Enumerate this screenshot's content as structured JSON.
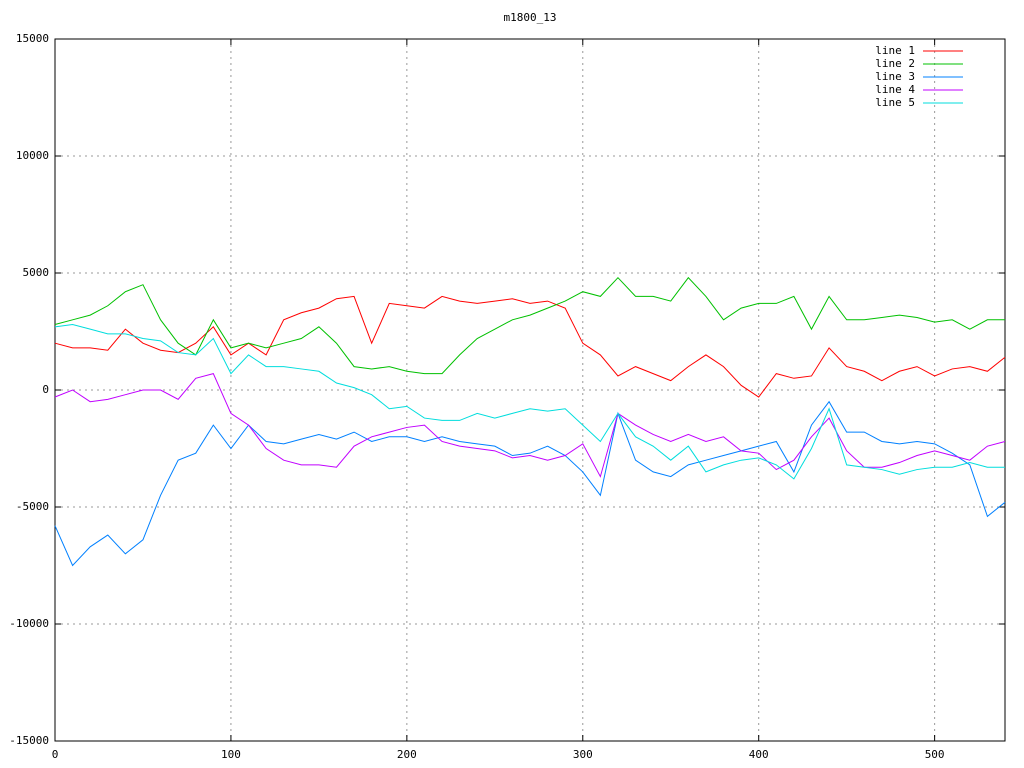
{
  "chart_data": {
    "type": "line",
    "title": "m1800_13",
    "x": [
      0,
      10,
      20,
      30,
      40,
      50,
      60,
      70,
      80,
      90,
      100,
      110,
      120,
      130,
      140,
      150,
      160,
      170,
      180,
      190,
      200,
      210,
      220,
      230,
      240,
      250,
      260,
      270,
      280,
      290,
      300,
      310,
      320,
      330,
      340,
      350,
      360,
      370,
      380,
      390,
      400,
      410,
      420,
      430,
      440,
      450,
      460,
      470,
      480,
      490,
      500,
      510,
      520,
      530,
      540
    ],
    "series": [
      {
        "name": "line 1",
        "color": "#ff0000",
        "values": [
          2000,
          1800,
          1800,
          1700,
          2600,
          2000,
          1700,
          1600,
          2000,
          2700,
          1500,
          2000,
          1500,
          3000,
          3300,
          3500,
          3900,
          4000,
          2000,
          3700,
          3600,
          3500,
          4000,
          3800,
          3700,
          3800,
          3900,
          3700,
          3800,
          3500,
          2000,
          1500,
          600,
          1000,
          700,
          400,
          1000,
          1500,
          1000,
          200,
          -300,
          700,
          500,
          600,
          1800,
          1000,
          800,
          400,
          800,
          1000,
          600,
          900,
          1000,
          800,
          1400
        ]
      },
      {
        "name": "line 2",
        "color": "#00c000",
        "values": [
          2800,
          3000,
          3200,
          3600,
          4200,
          4500,
          3000,
          2000,
          1500,
          3000,
          1800,
          2000,
          1800,
          2000,
          2200,
          2700,
          2000,
          1000,
          900,
          1000,
          800,
          700,
          700,
          1500,
          2200,
          2600,
          3000,
          3200,
          3500,
          3800,
          4200,
          4000,
          4800,
          4000,
          4000,
          3800,
          4800,
          4000,
          3000,
          3500,
          3700,
          3700,
          4000,
          2600,
          4000,
          3000,
          3000,
          3100,
          3200,
          3100,
          2900,
          3000,
          2600,
          3000,
          3000
        ]
      },
      {
        "name": "line 3",
        "color": "#0080ff",
        "values": [
          -5800,
          -7500,
          -6700,
          -6200,
          -7000,
          -6400,
          -4500,
          -3000,
          -2700,
          -1500,
          -2500,
          -1500,
          -2200,
          -2300,
          -2100,
          -1900,
          -2100,
          -1800,
          -2200,
          -2000,
          -2000,
          -2200,
          -2000,
          -2200,
          -2300,
          -2400,
          -2800,
          -2700,
          -2400,
          -2800,
          -3500,
          -4500,
          -1000,
          -3000,
          -3500,
          -3700,
          -3200,
          -3000,
          -2800,
          -2600,
          -2400,
          -2200,
          -3500,
          -1500,
          -500,
          -1800,
          -1800,
          -2200,
          -2300,
          -2200,
          -2300,
          -2700,
          -3200,
          -5400,
          -4800
        ]
      },
      {
        "name": "line 4",
        "color": "#c000ff",
        "values": [
          -300,
          0,
          -500,
          -400,
          -200,
          0,
          0,
          -400,
          500,
          700,
          -1000,
          -1500,
          -2500,
          -3000,
          -3200,
          -3200,
          -3300,
          -2400,
          -2000,
          -1800,
          -1600,
          -1500,
          -2200,
          -2400,
          -2500,
          -2600,
          -2900,
          -2800,
          -3000,
          -2800,
          -2300,
          -3700,
          -1000,
          -1500,
          -1900,
          -2200,
          -1900,
          -2200,
          -2000,
          -2600,
          -2700,
          -3400,
          -3000,
          -2000,
          -1200,
          -2600,
          -3300,
          -3300,
          -3100,
          -2800,
          -2600,
          -2800,
          -3000,
          -2400,
          -2200
        ]
      },
      {
        "name": "line 5",
        "color": "#00dddd",
        "values": [
          2700,
          2800,
          2600,
          2400,
          2400,
          2200,
          2100,
          1600,
          1500,
          2200,
          700,
          1500,
          1000,
          1000,
          900,
          800,
          300,
          100,
          -200,
          -800,
          -700,
          -1200,
          -1300,
          -1300,
          -1000,
          -1200,
          -1000,
          -800,
          -900,
          -800,
          -1500,
          -2200,
          -1000,
          -2000,
          -2400,
          -3000,
          -2400,
          -3500,
          -3200,
          -3000,
          -2900,
          -3200,
          -3800,
          -2500,
          -800,
          -3200,
          -3300,
          -3400,
          -3600,
          -3400,
          -3300,
          -3300,
          -3100,
          -3300,
          -3300
        ]
      }
    ],
    "xlim": [
      0,
      540
    ],
    "xticks": [
      0,
      100,
      200,
      300,
      400,
      500
    ],
    "ylim": [
      -15000,
      15000
    ],
    "yticks": [
      -15000,
      -10000,
      -5000,
      0,
      5000,
      10000,
      15000
    ],
    "grid": true,
    "legend": "top-right"
  }
}
